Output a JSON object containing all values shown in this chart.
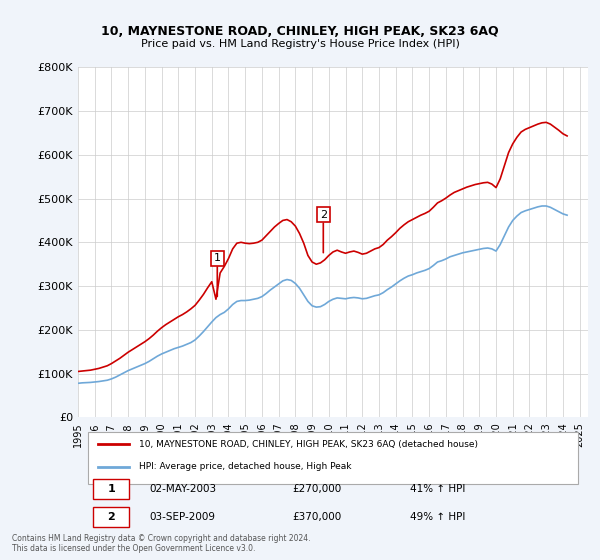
{
  "title": "10, MAYNESTONE ROAD, CHINLEY, HIGH PEAK, SK23 6AQ",
  "subtitle": "Price paid vs. HM Land Registry's House Price Index (HPI)",
  "ylabel_ticks": [
    "£0",
    "£100K",
    "£200K",
    "£300K",
    "£400K",
    "£500K",
    "£600K",
    "£700K",
    "£800K"
  ],
  "ytick_values": [
    0,
    100000,
    200000,
    300000,
    400000,
    500000,
    600000,
    700000,
    800000
  ],
  "ylim": [
    0,
    800000
  ],
  "xlim_start": 1995.0,
  "xlim_end": 2025.5,
  "background_color": "#f0f4fa",
  "plot_bg_color": "#ffffff",
  "hpi_color": "#6fa8d8",
  "price_color": "#cc0000",
  "marker1_year": 2003.33,
  "marker1_price": 270000,
  "marker2_year": 2009.67,
  "marker2_price": 370000,
  "legend_line1": "10, MAYNESTONE ROAD, CHINLEY, HIGH PEAK, SK23 6AQ (detached house)",
  "legend_line2": "HPI: Average price, detached house, High Peak",
  "table_row1": [
    "1",
    "02-MAY-2003",
    "£270,000",
    "41% ↑ HPI"
  ],
  "table_row2": [
    "2",
    "03-SEP-2009",
    "£370,000",
    "49% ↑ HPI"
  ],
  "footer": "Contains HM Land Registry data © Crown copyright and database right 2024.\nThis data is licensed under the Open Government Licence v3.0.",
  "xtick_years": [
    1995,
    1996,
    1997,
    1998,
    1999,
    2000,
    2001,
    2002,
    2003,
    2004,
    2005,
    2006,
    2007,
    2008,
    2009,
    2010,
    2011,
    2012,
    2013,
    2014,
    2015,
    2016,
    2017,
    2018,
    2019,
    2020,
    2021,
    2022,
    2023,
    2024,
    2025
  ],
  "hpi_data_x": [
    1995.0,
    1995.25,
    1995.5,
    1995.75,
    1996.0,
    1996.25,
    1996.5,
    1996.75,
    1997.0,
    1997.25,
    1997.5,
    1997.75,
    1998.0,
    1998.25,
    1998.5,
    1998.75,
    1999.0,
    1999.25,
    1999.5,
    1999.75,
    2000.0,
    2000.25,
    2000.5,
    2000.75,
    2001.0,
    2001.25,
    2001.5,
    2001.75,
    2002.0,
    2002.25,
    2002.5,
    2002.75,
    2003.0,
    2003.25,
    2003.5,
    2003.75,
    2004.0,
    2004.25,
    2004.5,
    2004.75,
    2005.0,
    2005.25,
    2005.5,
    2005.75,
    2006.0,
    2006.25,
    2006.5,
    2006.75,
    2007.0,
    2007.25,
    2007.5,
    2007.75,
    2008.0,
    2008.25,
    2008.5,
    2008.75,
    2009.0,
    2009.25,
    2009.5,
    2009.75,
    2010.0,
    2010.25,
    2010.5,
    2010.75,
    2011.0,
    2011.25,
    2011.5,
    2011.75,
    2012.0,
    2012.25,
    2012.5,
    2012.75,
    2013.0,
    2013.25,
    2013.5,
    2013.75,
    2014.0,
    2014.25,
    2014.5,
    2014.75,
    2015.0,
    2015.25,
    2015.5,
    2015.75,
    2016.0,
    2016.25,
    2016.5,
    2016.75,
    2017.0,
    2017.25,
    2017.5,
    2017.75,
    2018.0,
    2018.25,
    2018.5,
    2018.75,
    2019.0,
    2019.25,
    2019.5,
    2019.75,
    2020.0,
    2020.25,
    2020.5,
    2020.75,
    2021.0,
    2021.25,
    2021.5,
    2021.75,
    2022.0,
    2022.25,
    2022.5,
    2022.75,
    2023.0,
    2023.25,
    2023.5,
    2023.75,
    2024.0,
    2024.25
  ],
  "hpi_data_y": [
    78000,
    79000,
    79500,
    80000,
    81000,
    82000,
    83500,
    85000,
    88000,
    92000,
    97000,
    102000,
    107000,
    111000,
    115000,
    119000,
    123000,
    128000,
    134000,
    140000,
    145000,
    149000,
    153000,
    157000,
    160000,
    163000,
    167000,
    171000,
    177000,
    186000,
    196000,
    207000,
    218000,
    228000,
    235000,
    240000,
    248000,
    258000,
    265000,
    267000,
    267000,
    268000,
    270000,
    272000,
    276000,
    283000,
    291000,
    298000,
    305000,
    312000,
    315000,
    313000,
    306000,
    295000,
    280000,
    265000,
    255000,
    252000,
    253000,
    258000,
    265000,
    270000,
    273000,
    272000,
    271000,
    273000,
    274000,
    273000,
    271000,
    272000,
    275000,
    278000,
    280000,
    285000,
    292000,
    298000,
    305000,
    312000,
    318000,
    323000,
    326000,
    330000,
    333000,
    336000,
    340000,
    347000,
    355000,
    358000,
    362000,
    367000,
    370000,
    373000,
    376000,
    378000,
    380000,
    382000,
    384000,
    386000,
    387000,
    385000,
    380000,
    395000,
    415000,
    435000,
    450000,
    460000,
    468000,
    472000,
    475000,
    478000,
    481000,
    483000,
    483000,
    480000,
    475000,
    470000,
    465000,
    462000
  ],
  "price_data_x": [
    1995.0,
    1995.25,
    1995.5,
    1995.75,
    1996.0,
    1996.25,
    1996.5,
    1996.75,
    1997.0,
    1997.25,
    1997.5,
    1997.75,
    1998.0,
    1998.25,
    1998.5,
    1998.75,
    1999.0,
    1999.25,
    1999.5,
    1999.75,
    2000.0,
    2000.25,
    2000.5,
    2000.75,
    2001.0,
    2001.25,
    2001.5,
    2001.75,
    2002.0,
    2002.25,
    2002.5,
    2002.75,
    2003.0,
    2003.25,
    2003.5,
    2003.75,
    2004.0,
    2004.25,
    2004.5,
    2004.75,
    2005.0,
    2005.25,
    2005.5,
    2005.75,
    2006.0,
    2006.25,
    2006.5,
    2006.75,
    2007.0,
    2007.25,
    2007.5,
    2007.75,
    2008.0,
    2008.25,
    2008.5,
    2008.75,
    2009.0,
    2009.25,
    2009.5,
    2009.75,
    2010.0,
    2010.25,
    2010.5,
    2010.75,
    2011.0,
    2011.25,
    2011.5,
    2011.75,
    2012.0,
    2012.25,
    2012.5,
    2012.75,
    2013.0,
    2013.25,
    2013.5,
    2013.75,
    2014.0,
    2014.25,
    2014.5,
    2014.75,
    2015.0,
    2015.25,
    2015.5,
    2015.75,
    2016.0,
    2016.25,
    2016.5,
    2016.75,
    2017.0,
    2017.25,
    2017.5,
    2017.75,
    2018.0,
    2018.25,
    2018.5,
    2018.75,
    2019.0,
    2019.25,
    2019.5,
    2019.75,
    2020.0,
    2020.25,
    2020.5,
    2020.75,
    2021.0,
    2021.25,
    2021.5,
    2021.75,
    2022.0,
    2022.25,
    2022.5,
    2022.75,
    2023.0,
    2023.25,
    2023.5,
    2023.75,
    2024.0,
    2024.25
  ],
  "price_data_y": [
    105000,
    106000,
    107000,
    108000,
    110000,
    112000,
    115000,
    118000,
    123000,
    129000,
    135000,
    142000,
    149000,
    155000,
    161000,
    167000,
    173000,
    180000,
    188000,
    197000,
    205000,
    212000,
    218000,
    224000,
    230000,
    235000,
    241000,
    248000,
    256000,
    268000,
    281000,
    296000,
    310000,
    270000,
    330000,
    345000,
    363000,
    385000,
    398000,
    400000,
    398000,
    397000,
    398000,
    400000,
    405000,
    415000,
    425000,
    435000,
    443000,
    450000,
    452000,
    447000,
    437000,
    420000,
    398000,
    370000,
    355000,
    350000,
    353000,
    360000,
    370000,
    378000,
    382000,
    378000,
    375000,
    378000,
    380000,
    377000,
    373000,
    375000,
    380000,
    385000,
    388000,
    395000,
    405000,
    413000,
    422000,
    432000,
    440000,
    447000,
    452000,
    457000,
    462000,
    466000,
    471000,
    480000,
    490000,
    495000,
    501000,
    508000,
    514000,
    518000,
    522000,
    526000,
    529000,
    532000,
    534000,
    536000,
    537000,
    533000,
    525000,
    545000,
    575000,
    605000,
    625000,
    640000,
    652000,
    658000,
    662000,
    666000,
    670000,
    673000,
    674000,
    670000,
    663000,
    656000,
    648000,
    643000
  ]
}
